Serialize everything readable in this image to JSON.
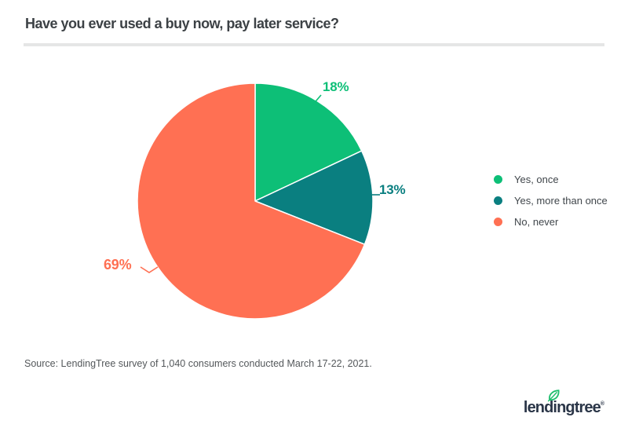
{
  "header": {
    "title": "Have you ever used a buy now, pay later service?"
  },
  "chart_data": {
    "type": "pie",
    "title": "Have you ever used a buy now, pay later service?",
    "categories": [
      "Yes, once",
      "Yes, more than once",
      "No, never"
    ],
    "values": [
      18,
      13,
      69
    ],
    "value_labels": [
      "18%",
      "13%",
      "69%"
    ],
    "colors": [
      "#0DBF77",
      "#0A7F80",
      "#FF7053"
    ],
    "start_angle": "12 o'clock",
    "direction": "clockwise",
    "legend_position": "right"
  },
  "footer": {
    "source": "Source: LendingTree survey of 1,040 consumers conducted March 17-22, 2021."
  },
  "logo": {
    "text": "lendingtree",
    "registered": "®",
    "navy": "#2B3648",
    "leaf_green": "#1FBE6E"
  }
}
